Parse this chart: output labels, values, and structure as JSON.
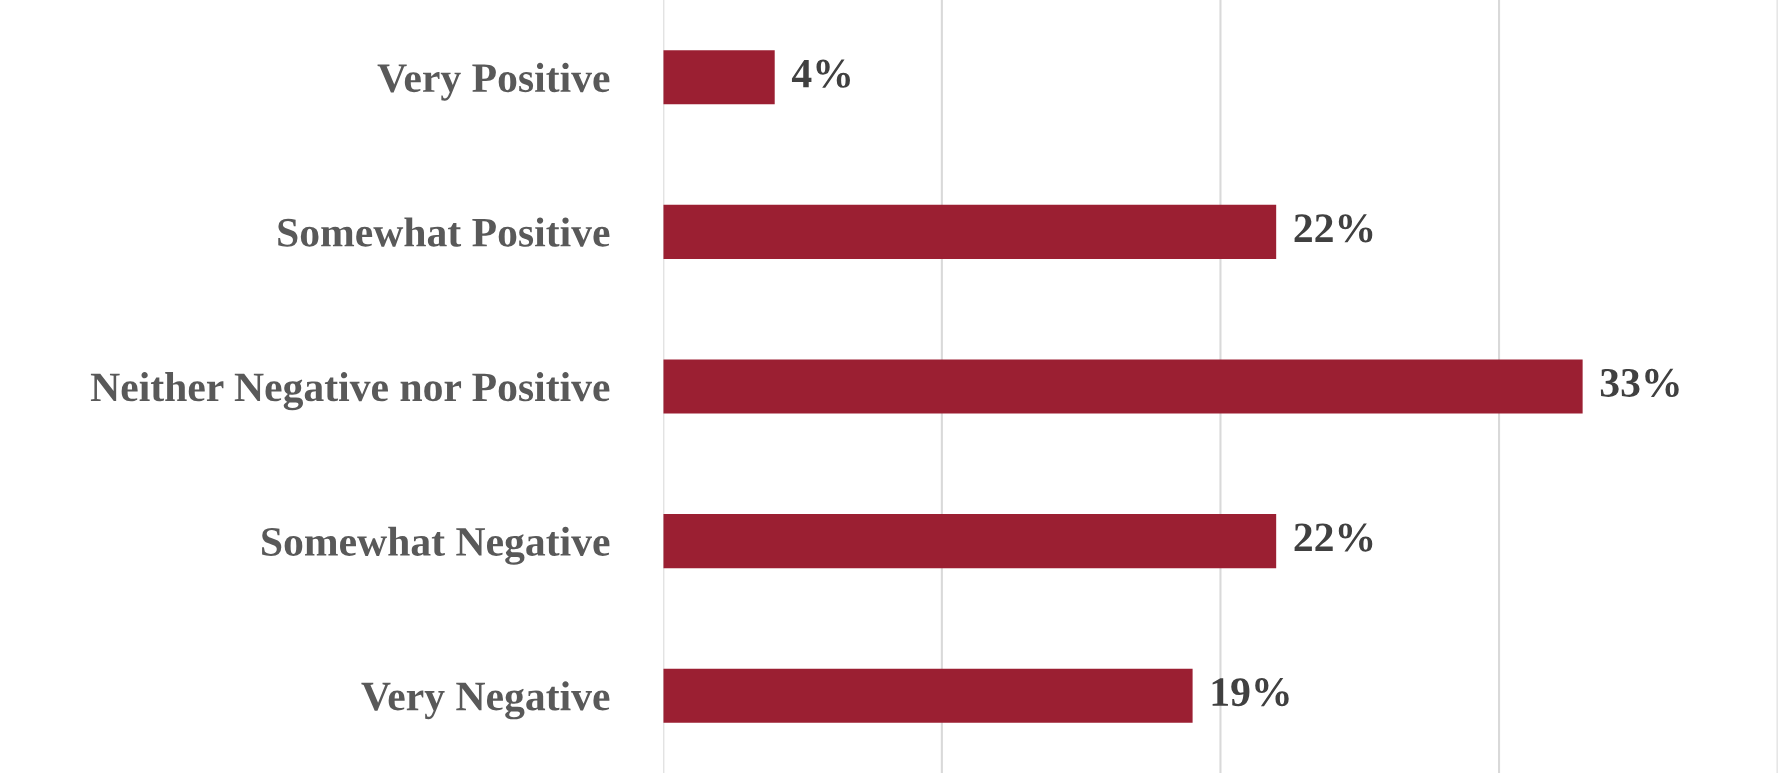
{
  "chart_data": {
    "type": "bar",
    "orientation": "horizontal",
    "categories": [
      "Very Positive",
      "Somewhat Positive",
      "Neither Negative nor Positive",
      "Somewhat Negative",
      "Very Negative"
    ],
    "values": [
      4,
      22,
      33,
      22,
      19
    ],
    "value_labels": [
      "4%",
      "22%",
      "33%",
      "22%",
      "19%"
    ],
    "color": "#9b1f32",
    "xlim": [
      0,
      40
    ],
    "xticks": [
      {
        "value": 0,
        "label": null
      },
      {
        "value": 10,
        "label": null
      },
      {
        "value": 20,
        "label": null
      },
      {
        "value": 30,
        "label": null
      },
      {
        "value": 40,
        "label": null
      }
    ],
    "grid": "x",
    "tick_labels": "y",
    "legend": false
  }
}
